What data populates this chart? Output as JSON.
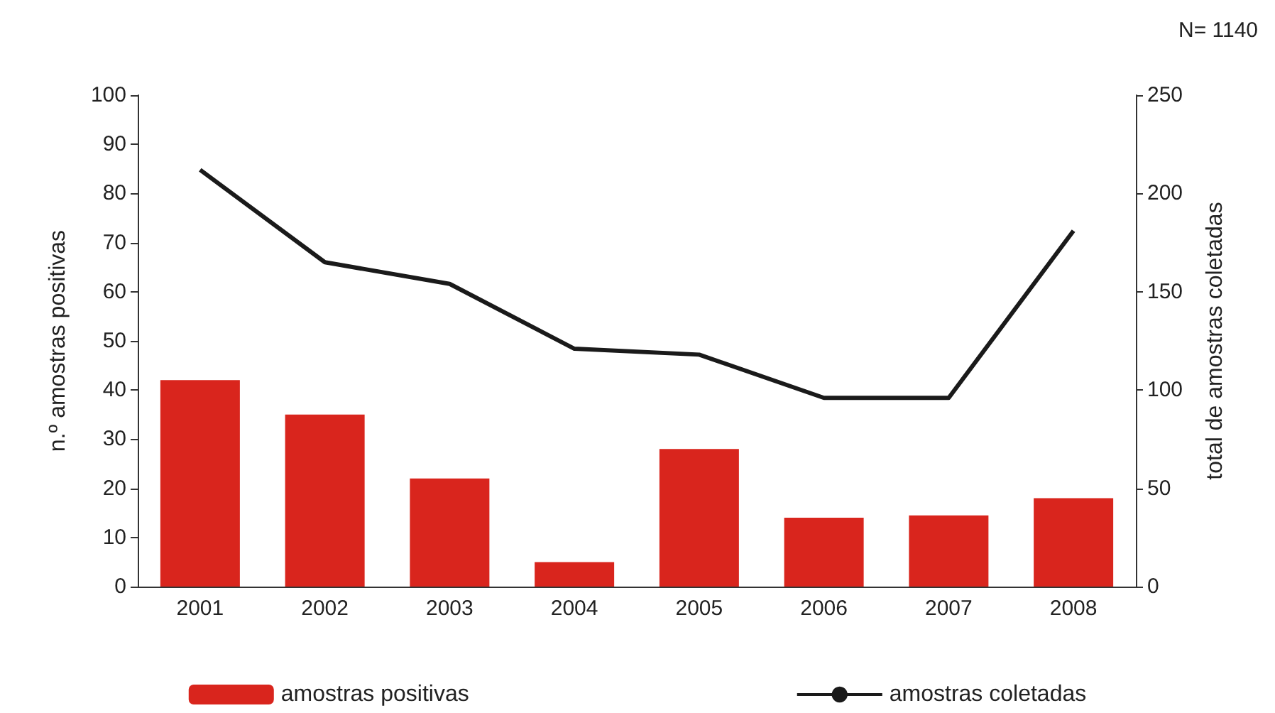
{
  "chart_data": {
    "type": "bar",
    "categories": [
      "2001",
      "2002",
      "2003",
      "2004",
      "2005",
      "2006",
      "2007",
      "2008"
    ],
    "series": [
      {
        "name": "amostras positivas",
        "color": "#d9251d",
        "values": [
          42,
          35,
          22,
          5,
          28,
          14,
          14.5,
          18
        ]
      },
      {
        "name": "amostras coletadas",
        "type": "line",
        "axis": "y2",
        "color": "#1a1a1a",
        "values": [
          212,
          165,
          154,
          121,
          118,
          96,
          96,
          181
        ]
      }
    ],
    "ylabel": "n.º amostras positivas",
    "y2label": "total de amostras coletadas",
    "ylim": [
      0,
      100
    ],
    "yticks": [
      0,
      10,
      20,
      30,
      40,
      50,
      60,
      70,
      80,
      90,
      100
    ],
    "y2lim": [
      0,
      250
    ],
    "y2ticks": [
      0,
      50,
      100,
      150,
      200,
      250
    ],
    "annotations": [
      "N= 1140"
    ],
    "legend": "bottom",
    "grid": false,
    "marker": "none"
  }
}
